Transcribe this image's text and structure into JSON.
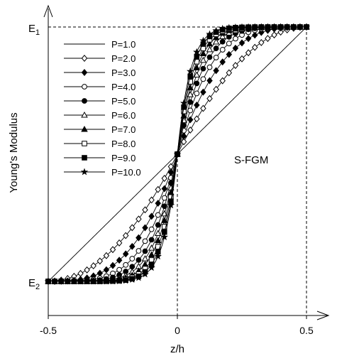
{
  "chart_data": {
    "type": "line",
    "title": "",
    "xlabel": "z/h",
    "ylabel": "Young's Modulus",
    "xlim": [
      -0.5,
      0.5
    ],
    "x_ticks": [
      "-0.5",
      "0",
      "0.5"
    ],
    "y_ticks": [
      "E1",
      "E2"
    ],
    "y_tick_labels": {
      "E1": {
        "main": "E",
        "sub": "1"
      },
      "E2": {
        "main": "E",
        "sub": "2"
      }
    },
    "annotation": "S-FGM",
    "legend_position": "top-left",
    "model": "E(z) = E2 + (E1-E2)*f(z); f = 1 - 0.5*(1-2z/h)^P for z>=0, f = 0.5*(1+2z/h)^P for z<0",
    "series": [
      {
        "name": "P=1.0",
        "p": 1,
        "marker": "none"
      },
      {
        "name": "P=2.0",
        "p": 2,
        "marker": "diamond-open"
      },
      {
        "name": "P=3.0",
        "p": 3,
        "marker": "diamond-filled"
      },
      {
        "name": "P=4.0",
        "p": 4,
        "marker": "circle-open"
      },
      {
        "name": "P=5.0",
        "p": 5,
        "marker": "circle-filled"
      },
      {
        "name": "P=6.0",
        "p": 6,
        "marker": "triangle-open"
      },
      {
        "name": "P=7.0",
        "p": 7,
        "marker": "triangle-filled"
      },
      {
        "name": "P=8.0",
        "p": 8,
        "marker": "square-open"
      },
      {
        "name": "P=9.0",
        "p": 9,
        "marker": "square-filled"
      },
      {
        "name": "P=10.0",
        "p": 10,
        "marker": "star"
      }
    ]
  }
}
